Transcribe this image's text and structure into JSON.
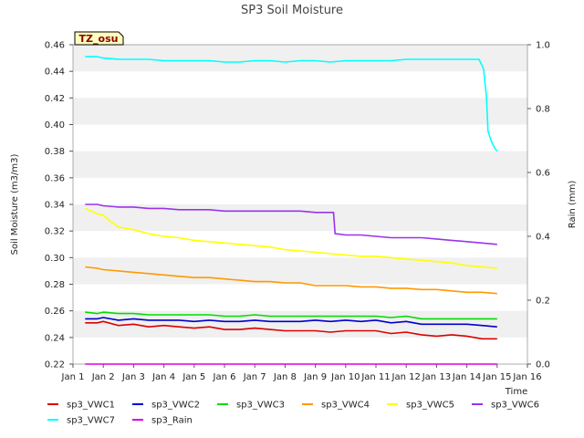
{
  "chart_data": {
    "type": "line",
    "title": "SP3 Soil Moisture",
    "site_label": "TZ_osu",
    "xlabel": "Time",
    "ylabel": "Soil Moisture (m3/m3)",
    "y2label": "Rain (mm)",
    "x_ticks": [
      "Jan 1",
      "Jan 2",
      "Jan 3",
      "Jan 4",
      "Jan 5",
      "Jan 6",
      "Jan 7",
      "Jan 8",
      "Jan 9",
      "Jan 10",
      "Jan 11",
      "Jan 12",
      "Jan 13",
      "Jan 14",
      "Jan 15",
      "Jan 16"
    ],
    "xlim": [
      1,
      16
    ],
    "ylim": [
      0.22,
      0.46
    ],
    "y_ticks": [
      "0.22",
      "0.24",
      "0.26",
      "0.28",
      "0.30",
      "0.32",
      "0.34",
      "0.36",
      "0.38",
      "0.40",
      "0.42",
      "0.44",
      "0.46"
    ],
    "y2lim": [
      0.0,
      1.0
    ],
    "y2_ticks": [
      "0.0",
      "0.2",
      "0.4",
      "0.6",
      "0.8",
      "1.0"
    ],
    "grid": "horizontal alternating bands",
    "legend_position": "bottom",
    "series": [
      {
        "name": "sp3_VWC1",
        "color": "#dd0000",
        "axis": "left",
        "x": [
          1.4,
          1.8,
          2.0,
          2.5,
          3.0,
          3.5,
          4.0,
          4.5,
          5.0,
          5.5,
          6.0,
          6.5,
          7.0,
          7.5,
          8.0,
          8.5,
          9.0,
          9.5,
          10.0,
          10.5,
          11.0,
          11.5,
          12.0,
          12.5,
          13.0,
          13.5,
          14.0,
          14.5,
          15.0
        ],
        "y": [
          0.251,
          0.251,
          0.252,
          0.249,
          0.25,
          0.248,
          0.249,
          0.248,
          0.247,
          0.248,
          0.246,
          0.246,
          0.247,
          0.246,
          0.245,
          0.245,
          0.245,
          0.244,
          0.245,
          0.245,
          0.245,
          0.243,
          0.244,
          0.242,
          0.241,
          0.242,
          0.241,
          0.239,
          0.239
        ]
      },
      {
        "name": "sp3_VWC2",
        "color": "#0000cc",
        "axis": "left",
        "x": [
          1.4,
          1.8,
          2.0,
          2.5,
          3.0,
          3.5,
          4.0,
          4.5,
          5.0,
          5.5,
          6.0,
          6.5,
          7.0,
          7.5,
          8.0,
          8.5,
          9.0,
          9.5,
          10.0,
          10.5,
          11.0,
          11.5,
          12.0,
          12.5,
          13.0,
          13.5,
          14.0,
          14.5,
          15.0
        ],
        "y": [
          0.254,
          0.254,
          0.255,
          0.253,
          0.254,
          0.253,
          0.253,
          0.253,
          0.252,
          0.253,
          0.252,
          0.252,
          0.253,
          0.252,
          0.252,
          0.252,
          0.253,
          0.252,
          0.253,
          0.252,
          0.253,
          0.251,
          0.252,
          0.25,
          0.25,
          0.25,
          0.25,
          0.249,
          0.248
        ]
      },
      {
        "name": "sp3_VWC3",
        "color": "#00dd00",
        "axis": "left",
        "x": [
          1.4,
          1.8,
          2.0,
          2.5,
          3.0,
          3.5,
          4.0,
          4.5,
          5.0,
          5.5,
          6.0,
          6.5,
          7.0,
          7.5,
          8.0,
          8.5,
          9.0,
          9.5,
          10.0,
          10.5,
          11.0,
          11.5,
          12.0,
          12.5,
          13.0,
          13.5,
          14.0,
          14.5,
          15.0
        ],
        "y": [
          0.259,
          0.258,
          0.259,
          0.258,
          0.258,
          0.257,
          0.257,
          0.257,
          0.257,
          0.257,
          0.256,
          0.256,
          0.257,
          0.256,
          0.256,
          0.256,
          0.256,
          0.256,
          0.256,
          0.256,
          0.256,
          0.255,
          0.256,
          0.254,
          0.254,
          0.254,
          0.254,
          0.254,
          0.254
        ]
      },
      {
        "name": "sp3_VWC4",
        "color": "#ff9900",
        "axis": "left",
        "x": [
          1.4,
          1.8,
          2.0,
          2.5,
          3.0,
          3.5,
          4.0,
          4.5,
          5.0,
          5.5,
          6.0,
          6.5,
          7.0,
          7.5,
          8.0,
          8.5,
          9.0,
          9.5,
          10.0,
          10.5,
          11.0,
          11.5,
          12.0,
          12.5,
          13.0,
          13.5,
          14.0,
          14.5,
          15.0
        ],
        "y": [
          0.293,
          0.292,
          0.291,
          0.29,
          0.289,
          0.288,
          0.287,
          0.286,
          0.285,
          0.285,
          0.284,
          0.283,
          0.282,
          0.282,
          0.281,
          0.281,
          0.279,
          0.279,
          0.279,
          0.278,
          0.278,
          0.277,
          0.277,
          0.276,
          0.276,
          0.275,
          0.274,
          0.274,
          0.273
        ]
      },
      {
        "name": "sp3_VWC5",
        "color": "#ffff00",
        "axis": "left",
        "x": [
          1.4,
          1.8,
          2.0,
          2.2,
          2.5,
          3.0,
          3.5,
          4.0,
          4.5,
          5.0,
          5.5,
          6.0,
          6.5,
          7.0,
          7.5,
          8.0,
          8.5,
          9.0,
          9.5,
          10.0,
          10.5,
          11.0,
          11.5,
          12.0,
          12.5,
          13.0,
          13.5,
          14.0,
          14.5,
          15.0
        ],
        "y": [
          0.337,
          0.333,
          0.332,
          0.328,
          0.323,
          0.321,
          0.318,
          0.316,
          0.315,
          0.313,
          0.312,
          0.311,
          0.31,
          0.309,
          0.308,
          0.306,
          0.305,
          0.304,
          0.303,
          0.302,
          0.301,
          0.301,
          0.3,
          0.299,
          0.298,
          0.297,
          0.296,
          0.294,
          0.293,
          0.292
        ]
      },
      {
        "name": "sp3_VWC6",
        "color": "#9933ee",
        "axis": "left",
        "x": [
          1.4,
          1.8,
          2.0,
          2.5,
          3.0,
          3.5,
          4.0,
          4.5,
          5.0,
          5.5,
          6.0,
          6.5,
          7.0,
          7.5,
          8.0,
          8.5,
          9.0,
          9.6,
          9.65,
          10.0,
          10.5,
          11.0,
          11.5,
          12.0,
          12.5,
          13.0,
          13.5,
          14.0,
          14.5,
          15.0
        ],
        "y": [
          0.34,
          0.34,
          0.339,
          0.338,
          0.338,
          0.337,
          0.337,
          0.336,
          0.336,
          0.336,
          0.335,
          0.335,
          0.335,
          0.335,
          0.335,
          0.335,
          0.334,
          0.334,
          0.318,
          0.317,
          0.317,
          0.316,
          0.315,
          0.315,
          0.315,
          0.314,
          0.313,
          0.312,
          0.311,
          0.31
        ]
      },
      {
        "name": "sp3_VWC7",
        "color": "#00ffff",
        "axis": "left",
        "x": [
          1.4,
          1.8,
          2.0,
          2.5,
          3.0,
          3.5,
          4.0,
          4.5,
          5.0,
          5.5,
          6.0,
          6.5,
          7.0,
          7.5,
          8.0,
          8.5,
          9.0,
          9.5,
          10.0,
          10.5,
          11.0,
          11.5,
          12.0,
          12.5,
          13.0,
          13.5,
          14.0,
          14.4,
          14.55,
          14.65,
          14.7,
          14.8,
          14.9,
          15.0
        ],
        "y": [
          0.451,
          0.451,
          0.45,
          0.449,
          0.449,
          0.449,
          0.448,
          0.448,
          0.448,
          0.448,
          0.447,
          0.447,
          0.448,
          0.448,
          0.447,
          0.448,
          0.448,
          0.447,
          0.448,
          0.448,
          0.448,
          0.448,
          0.449,
          0.449,
          0.449,
          0.449,
          0.449,
          0.449,
          0.442,
          0.42,
          0.395,
          0.388,
          0.383,
          0.38
        ]
      },
      {
        "name": "sp3_Rain",
        "color": "#dd00dd",
        "axis": "right",
        "x": [
          1.4,
          15.0
        ],
        "y": [
          0.0,
          0.0
        ]
      }
    ]
  }
}
